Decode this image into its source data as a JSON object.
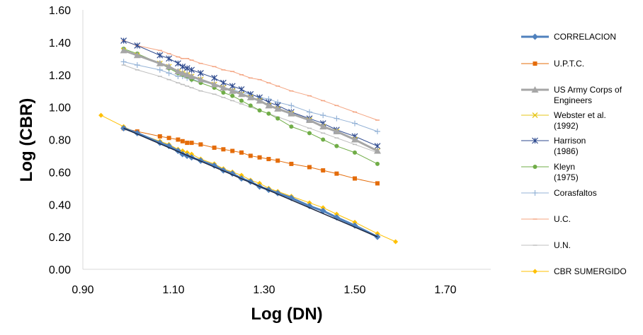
{
  "chart_data": {
    "type": "line",
    "xlabel": "Log (DN)",
    "ylabel": "Log (CBR)",
    "xlim": [
      0.9,
      1.8
    ],
    "ylim": [
      0.0,
      1.6
    ],
    "xticks": [
      "0.90",
      "1.10",
      "1.30",
      "1.50",
      "1.70"
    ],
    "yticks": [
      "0.00",
      "0.20",
      "0.40",
      "0.60",
      "0.80",
      "1.00",
      "1.20",
      "1.40",
      "1.60"
    ],
    "grid": false,
    "legend_position": "right",
    "series": [
      {
        "name": "CORRELACION",
        "color": "#4F81BD",
        "marker": "diamond",
        "width": 3,
        "x": [
          0.99,
          1.02,
          1.07,
          1.09,
          1.11,
          1.12,
          1.13,
          1.14,
          1.16,
          1.19,
          1.21,
          1.23,
          1.25,
          1.27,
          1.29,
          1.31,
          1.33,
          1.36,
          1.4,
          1.43,
          1.46,
          1.5,
          1.55
        ],
        "y": [
          0.87,
          0.84,
          0.78,
          0.76,
          0.73,
          0.71,
          0.7,
          0.69,
          0.67,
          0.64,
          0.61,
          0.59,
          0.56,
          0.54,
          0.51,
          0.49,
          0.47,
          0.44,
          0.39,
          0.36,
          0.32,
          0.27,
          0.2
        ]
      },
      {
        "name": "U.P.T.C.",
        "color": "#E46C0A",
        "marker": "square",
        "width": 1,
        "x": [
          0.99,
          1.02,
          1.07,
          1.09,
          1.11,
          1.12,
          1.13,
          1.14,
          1.16,
          1.19,
          1.21,
          1.23,
          1.25,
          1.27,
          1.29,
          1.31,
          1.33,
          1.36,
          1.4,
          1.43,
          1.46,
          1.5,
          1.55
        ],
        "y": [
          0.87,
          0.85,
          0.82,
          0.81,
          0.8,
          0.79,
          0.78,
          0.78,
          0.77,
          0.75,
          0.74,
          0.73,
          0.72,
          0.7,
          0.69,
          0.68,
          0.67,
          0.65,
          0.63,
          0.61,
          0.59,
          0.56,
          0.53
        ]
      },
      {
        "name": "US Army Corps of Engineers",
        "color": "#A6A6A6",
        "marker": "triangle",
        "width": 3,
        "x": [
          0.99,
          1.02,
          1.07,
          1.09,
          1.11,
          1.12,
          1.13,
          1.14,
          1.16,
          1.19,
          1.21,
          1.23,
          1.25,
          1.27,
          1.29,
          1.31,
          1.33,
          1.36,
          1.4,
          1.43,
          1.46,
          1.5,
          1.55
        ],
        "y": [
          1.35,
          1.32,
          1.27,
          1.25,
          1.22,
          1.21,
          1.2,
          1.19,
          1.17,
          1.14,
          1.12,
          1.1,
          1.08,
          1.06,
          1.04,
          1.01,
          0.99,
          0.96,
          0.92,
          0.88,
          0.85,
          0.8,
          0.73
        ]
      },
      {
        "name": "Webster et al. (1992)",
        "color": "#E6C619",
        "marker": "x",
        "width": 1,
        "x": [
          0.99,
          1.02,
          1.07,
          1.09,
          1.11,
          1.12,
          1.13,
          1.14,
          1.16,
          1.19,
          1.21,
          1.23,
          1.25,
          1.27,
          1.29,
          1.31,
          1.33,
          1.36,
          1.4,
          1.43,
          1.46,
          1.5,
          1.55
        ],
        "y": [
          1.35,
          1.32,
          1.27,
          1.25,
          1.22,
          1.21,
          1.2,
          1.19,
          1.17,
          1.14,
          1.12,
          1.1,
          1.08,
          1.06,
          1.04,
          1.01,
          0.99,
          0.96,
          0.92,
          0.88,
          0.85,
          0.8,
          0.73
        ]
      },
      {
        "name": "Harrison (1986)",
        "color": "#2E4A8E",
        "marker": "star",
        "width": 1,
        "x": [
          0.99,
          1.02,
          1.07,
          1.09,
          1.11,
          1.12,
          1.13,
          1.14,
          1.16,
          1.19,
          1.21,
          1.23,
          1.25,
          1.27,
          1.29,
          1.31,
          1.33,
          1.36,
          1.4,
          1.43,
          1.46,
          1.5,
          1.55
        ],
        "y": [
          1.41,
          1.38,
          1.32,
          1.3,
          1.27,
          1.25,
          1.24,
          1.23,
          1.21,
          1.18,
          1.15,
          1.13,
          1.11,
          1.08,
          1.06,
          1.03,
          1.01,
          0.97,
          0.93,
          0.9,
          0.86,
          0.82,
          0.76
        ]
      },
      {
        "name": "Kleyn (1975)",
        "color": "#70AD47",
        "marker": "circle",
        "width": 1,
        "x": [
          0.99,
          1.02,
          1.07,
          1.09,
          1.11,
          1.12,
          1.13,
          1.14,
          1.16,
          1.19,
          1.21,
          1.23,
          1.25,
          1.27,
          1.29,
          1.31,
          1.33,
          1.36,
          1.4,
          1.43,
          1.46,
          1.5,
          1.55
        ],
        "y": [
          1.36,
          1.33,
          1.27,
          1.24,
          1.21,
          1.2,
          1.19,
          1.17,
          1.15,
          1.12,
          1.09,
          1.07,
          1.04,
          1.01,
          0.98,
          0.96,
          0.93,
          0.88,
          0.84,
          0.8,
          0.76,
          0.72,
          0.65
        ]
      },
      {
        "name": "Corasfaltos",
        "color": "#95B3D7",
        "marker": "plus",
        "width": 1,
        "x": [
          0.99,
          1.02,
          1.07,
          1.09,
          1.11,
          1.12,
          1.13,
          1.14,
          1.16,
          1.19,
          1.21,
          1.23,
          1.25,
          1.27,
          1.29,
          1.31,
          1.33,
          1.36,
          1.4,
          1.43,
          1.46,
          1.5,
          1.55
        ],
        "y": [
          1.28,
          1.26,
          1.23,
          1.21,
          1.19,
          1.19,
          1.18,
          1.17,
          1.16,
          1.14,
          1.12,
          1.11,
          1.09,
          1.08,
          1.06,
          1.05,
          1.03,
          1.01,
          0.97,
          0.95,
          0.93,
          0.9,
          0.85
        ]
      },
      {
        "name": "U.C.",
        "color": "#F4A582",
        "marker": "dash",
        "width": 1,
        "x": [
          0.99,
          1.02,
          1.07,
          1.09,
          1.11,
          1.12,
          1.13,
          1.14,
          1.16,
          1.19,
          1.21,
          1.23,
          1.25,
          1.27,
          1.29,
          1.31,
          1.33,
          1.36,
          1.4,
          1.43,
          1.46,
          1.5,
          1.55
        ],
        "y": [
          1.41,
          1.38,
          1.35,
          1.33,
          1.31,
          1.3,
          1.3,
          1.29,
          1.27,
          1.25,
          1.23,
          1.22,
          1.2,
          1.18,
          1.17,
          1.15,
          1.13,
          1.1,
          1.07,
          1.04,
          1.01,
          0.97,
          0.92
        ]
      },
      {
        "name": "U.N.",
        "color": "#BFBFBF",
        "marker": "dash",
        "width": 1,
        "x": [
          0.99,
          1.02,
          1.07,
          1.09,
          1.11,
          1.12,
          1.13,
          1.14,
          1.16,
          1.19,
          1.21,
          1.23,
          1.25,
          1.27,
          1.29,
          1.31,
          1.33,
          1.36,
          1.4,
          1.43,
          1.46,
          1.5,
          1.55
        ],
        "y": [
          1.26,
          1.23,
          1.19,
          1.17,
          1.15,
          1.14,
          1.13,
          1.12,
          1.1,
          1.08,
          1.06,
          1.04,
          1.02,
          1.0,
          0.98,
          0.96,
          0.94,
          0.91,
          0.87,
          0.84,
          0.81,
          0.77,
          0.72
        ]
      },
      {
        "name": "CBR SUMERGIDO",
        "color": "#FFC000",
        "marker": "diamond",
        "width": 1,
        "x": [
          0.94,
          0.99,
          1.02,
          1.07,
          1.09,
          1.11,
          1.12,
          1.13,
          1.14,
          1.16,
          1.19,
          1.21,
          1.23,
          1.25,
          1.27,
          1.29,
          1.31,
          1.33,
          1.36,
          1.4,
          1.43,
          1.46,
          1.5,
          1.55,
          1.59
        ],
        "y": [
          0.95,
          0.88,
          0.84,
          0.79,
          0.77,
          0.74,
          0.73,
          0.72,
          0.71,
          0.68,
          0.65,
          0.62,
          0.6,
          0.58,
          0.55,
          0.53,
          0.5,
          0.48,
          0.45,
          0.41,
          0.38,
          0.34,
          0.29,
          0.22,
          0.17
        ]
      }
    ],
    "legend": [
      "CORRELACION",
      "U.P.T.C.",
      "US Army Corps of Engineers",
      "Webster et al. (1992)",
      "Harrison (1986)",
      "Kleyn (1975)",
      "Corasfaltos",
      "U.C.",
      "U.N.",
      "CBR SUMERGIDO"
    ],
    "legend_lines": [
      [
        "CORRELACION"
      ],
      [
        "U.P.T.C."
      ],
      [
        "US Army Corps of",
        "Engineers"
      ],
      [
        "Webster et al.",
        "(1992)"
      ],
      [
        "Harrison",
        "(1986)"
      ],
      [
        "Kleyn",
        "(1975)"
      ],
      [
        "Corasfaltos"
      ],
      [
        "U.C."
      ],
      [
        "U.N."
      ],
      [
        "CBR SUMERGIDO"
      ]
    ]
  }
}
